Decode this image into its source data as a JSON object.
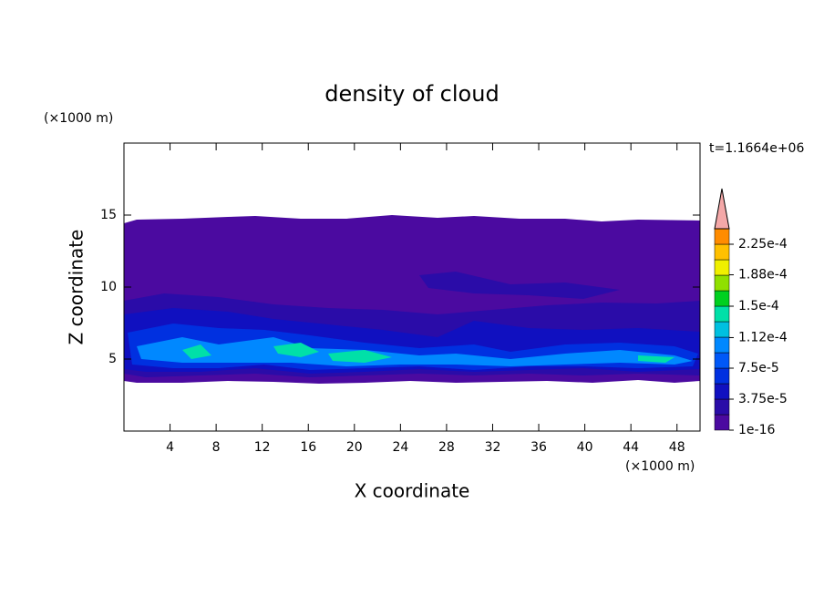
{
  "chart_data": {
    "type": "contour",
    "title": "density of cloud",
    "x_label": "X coordinate",
    "y_label": "Z coordinate",
    "x_unit": "(×1000 m)",
    "y_unit": "(×1000 m)",
    "time_label": "t=1.1664e+06",
    "xlim": [
      0,
      50
    ],
    "ylim": [
      0,
      20
    ],
    "xticks": [
      4,
      8,
      12,
      16,
      20,
      24,
      28,
      32,
      36,
      40,
      44,
      48
    ],
    "yticks": [
      5,
      10,
      15
    ],
    "colorbar": {
      "lim": [
        1e-16,
        0.00024375
      ],
      "colors": [
        "#4b0aa0",
        "#2a0ca8",
        "#1010c0",
        "#0030e0",
        "#0058f8",
        "#0088ff",
        "#00c0e0",
        "#00e0a8",
        "#00d020",
        "#90e000",
        "#f0f000",
        "#ffc000",
        "#ff8c00"
      ],
      "extend_color": "#f4a8a8",
      "ticks": [
        {
          "value": 1e-16,
          "label": "1e-16"
        },
        {
          "value": 3.75e-05,
          "label": "3.75e-5"
        },
        {
          "value": 7.5e-05,
          "label": "7.5e-5"
        },
        {
          "value": 0.000112,
          "label": "1.12e-4"
        },
        {
          "value": 0.00015,
          "label": "1.5e-4"
        },
        {
          "value": 0.000188,
          "label": "1.88e-4"
        },
        {
          "value": 0.000225,
          "label": "2.25e-4"
        }
      ]
    }
  }
}
